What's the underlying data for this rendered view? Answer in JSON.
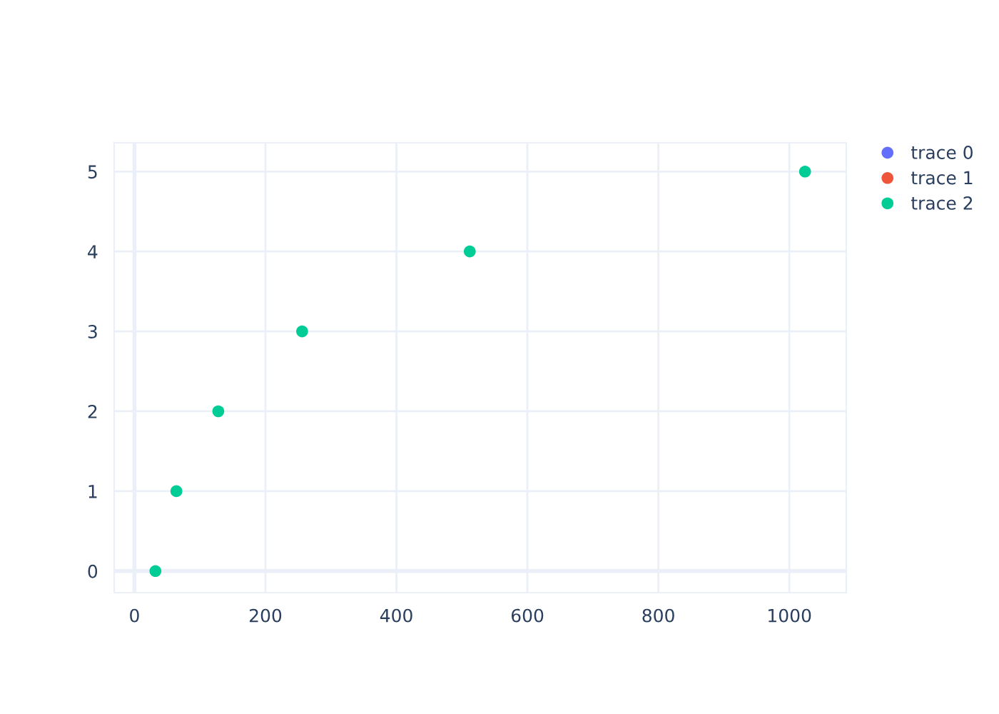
{
  "chart_data": {
    "type": "scatter",
    "x": [
      32,
      64,
      128,
      256,
      512,
      1024
    ],
    "series": [
      {
        "name": "trace 0",
        "color": "#636efa",
        "values": [
          null,
          null,
          null,
          null,
          null,
          null
        ]
      },
      {
        "name": "trace 1",
        "color": "#ef553b",
        "values": [
          null,
          null,
          null,
          null,
          null,
          null
        ]
      },
      {
        "name": "trace 2",
        "color": "#00cc96",
        "values": [
          0,
          1,
          2,
          3,
          4,
          5
        ]
      }
    ],
    "xlim": [
      -31,
      1087
    ],
    "xticks": [
      0,
      200,
      400,
      600,
      800,
      1000
    ],
    "ylim": [
      -0.27,
      5.36
    ],
    "yticks": [
      0,
      1,
      2,
      3,
      4,
      5
    ],
    "grid": true,
    "legend": "top right",
    "marker": "circle"
  }
}
